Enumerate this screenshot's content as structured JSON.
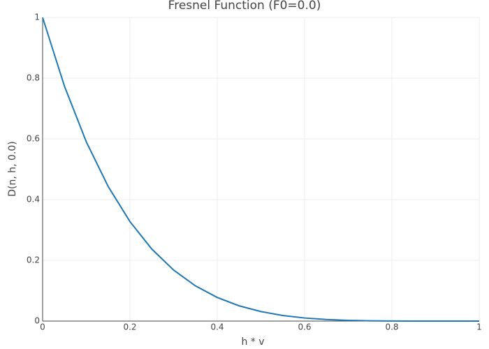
{
  "chart_data": {
    "type": "line",
    "title": "Fresnel Function (F0=0.0)",
    "x_label": "h * v",
    "y_label": "D(n, h, 0.0)",
    "x": [
      0,
      0.05,
      0.1,
      0.15,
      0.2,
      0.25,
      0.3,
      0.35,
      0.4,
      0.45,
      0.5,
      0.55,
      0.6,
      0.65,
      0.7,
      0.75,
      0.8,
      0.85,
      0.9,
      0.95,
      1
    ],
    "series": [
      {
        "color": "#1f77b4",
        "values": [
          1,
          0.7738,
          0.5905,
          0.4437,
          0.3277,
          0.2373,
          0.1681,
          0.116,
          0.0778,
          0.0503,
          0.0313,
          0.0185,
          0.0102,
          0.0053,
          0.0024,
          0.001,
          0.0003,
          0.0001,
          0,
          0,
          0
        ]
      }
    ],
    "xlim": [
      0,
      1
    ],
    "ylim": [
      0,
      1
    ],
    "xticks": [
      0,
      0.2,
      0.4,
      0.6,
      0.8,
      1
    ],
    "yticks": [
      0,
      0.2,
      0.4,
      0.6,
      0.8,
      1
    ],
    "grid": true
  }
}
